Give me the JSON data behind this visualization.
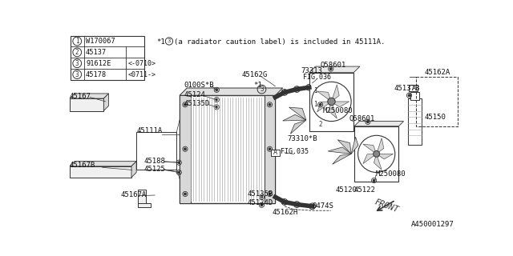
{
  "bg_color": "#ffffff",
  "line_color": "#333333",
  "title": "A450001297",
  "note": "*1  (3) (a radiator caution label) is included in 45111A.",
  "table_rows": [
    [
      "1",
      "W170067",
      ""
    ],
    [
      "2",
      "45137",
      ""
    ],
    [
      "3",
      "91612E",
      "<-0710>"
    ],
    [
      "3",
      "45178",
      "<0711->"
    ]
  ],
  "fig_w": 640,
  "fig_h": 320
}
